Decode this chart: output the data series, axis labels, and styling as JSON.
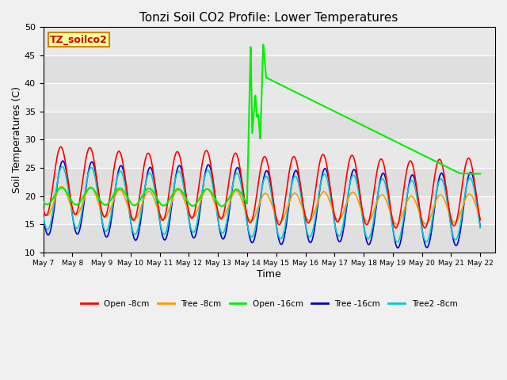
{
  "title": "Tonzi Soil CO2 Profile: Lower Temperatures",
  "xlabel": "Time",
  "ylabel": "Soil Temperatures (C)",
  "ylim": [
    10,
    50
  ],
  "xlim": [
    0,
    15.5
  ],
  "plot_bg_color": "#e8e8e8",
  "fig_bg_color": "#f0f0f0",
  "label_box_text": "TZ_soilco2",
  "label_box_color": "#ffff99",
  "label_box_border": "#cc8800",
  "label_box_text_color": "#cc0000",
  "series": {
    "open_8cm": {
      "color": "#ff0000",
      "label": "Open -8cm"
    },
    "tree_8cm": {
      "color": "#ff9900",
      "label": "Tree -8cm"
    },
    "open_16cm": {
      "color": "#00ee00",
      "label": "Open -16cm"
    },
    "tree_16cm": {
      "color": "#0000cc",
      "label": "Tree -16cm"
    },
    "tree2_8cm": {
      "color": "#00cccc",
      "label": "Tree2 -8cm"
    }
  },
  "tick_labels": [
    "May 7",
    "May 8",
    "May 9",
    "May 10",
    "May 11",
    "May 12",
    "May 13",
    "May 14",
    "May 15",
    "May 16",
    "May 17",
    "May 18",
    "May 19",
    "May 20",
    "May 21",
    "May 22"
  ],
  "yticks": [
    10,
    15,
    20,
    25,
    30,
    35,
    40,
    45,
    50
  ]
}
